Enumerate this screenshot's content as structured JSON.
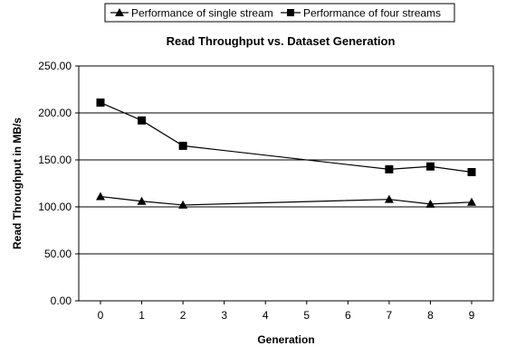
{
  "chart_data": {
    "type": "line",
    "title": "Read Throughput vs. Dataset Generation",
    "xlabel": "Generation",
    "ylabel": "Read Throughput in MB/s",
    "x_ticks": [
      "0",
      "1",
      "2",
      "3",
      "4",
      "5",
      "6",
      "7",
      "8",
      "9"
    ],
    "y_ticks": [
      "0.00",
      "50.00",
      "100.00",
      "150.00",
      "200.00",
      "250.00"
    ],
    "ylim": [
      0,
      250
    ],
    "xlim": [
      0,
      9
    ],
    "grid": "horizontal",
    "legend_position": "top",
    "series": [
      {
        "name": "Performance of single stream",
        "marker": "triangle",
        "color": "#000000",
        "x": [
          0,
          1,
          2,
          7,
          8,
          9
        ],
        "y": [
          111,
          106,
          102,
          108,
          103,
          105
        ]
      },
      {
        "name": "Performance of four streams",
        "marker": "square",
        "color": "#000000",
        "x": [
          0,
          1,
          2,
          7,
          8,
          9
        ],
        "y": [
          211,
          192,
          165,
          140,
          143,
          137
        ]
      }
    ]
  }
}
